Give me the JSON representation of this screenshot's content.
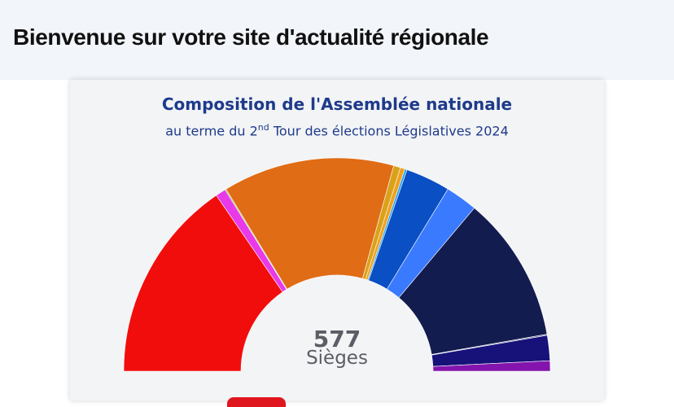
{
  "site": {
    "title": "Bienvenue sur votre site d'actualité régionale"
  },
  "chart": {
    "title": "Composition de l'Assemblée nationale",
    "subtitle_prefix": "au terme du 2",
    "subtitle_sup": "nd",
    "subtitle_suffix": " Tour des élections Législatives 2024",
    "total_value": "577",
    "total_label": "Sièges"
  },
  "chart_data": {
    "type": "pie",
    "variant": "parliament-hemicycle",
    "total": 577,
    "series": [
      {
        "value": 178,
        "color": "#f20d0d"
      },
      {
        "value": 9,
        "color": "#e83ae8"
      },
      {
        "value": 1,
        "color": "#8fbf3f"
      },
      {
        "value": 150,
        "color": "#e06c16"
      },
      {
        "value": 6,
        "color": "#d9a21a"
      },
      {
        "value": 4,
        "color": "#f0a020"
      },
      {
        "value": 2,
        "color": "#29a3f0"
      },
      {
        "value": 39,
        "color": "#0a4fc4"
      },
      {
        "value": 28,
        "color": "#3a7aff"
      },
      {
        "value": 128,
        "color": "#131c4f"
      },
      {
        "value": 1,
        "color": "#6a6a9a"
      },
      {
        "value": 22,
        "color": "#16127a"
      },
      {
        "value": 9,
        "color": "#8414ad"
      }
    ]
  }
}
